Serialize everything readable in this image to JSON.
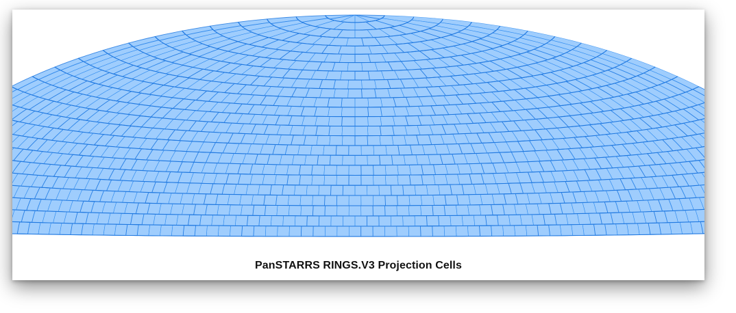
{
  "figure": {
    "title": "PanSTARRS RINGS.V3 Projection Cells",
    "colors": {
      "cell_fill": "#9fcdfd",
      "cell_line": "#2f8cf0",
      "cell_line_dark": "#1f78e0",
      "background": "#ffffff"
    },
    "projection": "Hammer-Aitoff (northern half)",
    "dec_rings": 24,
    "cells_per_ring_equator": 90
  }
}
